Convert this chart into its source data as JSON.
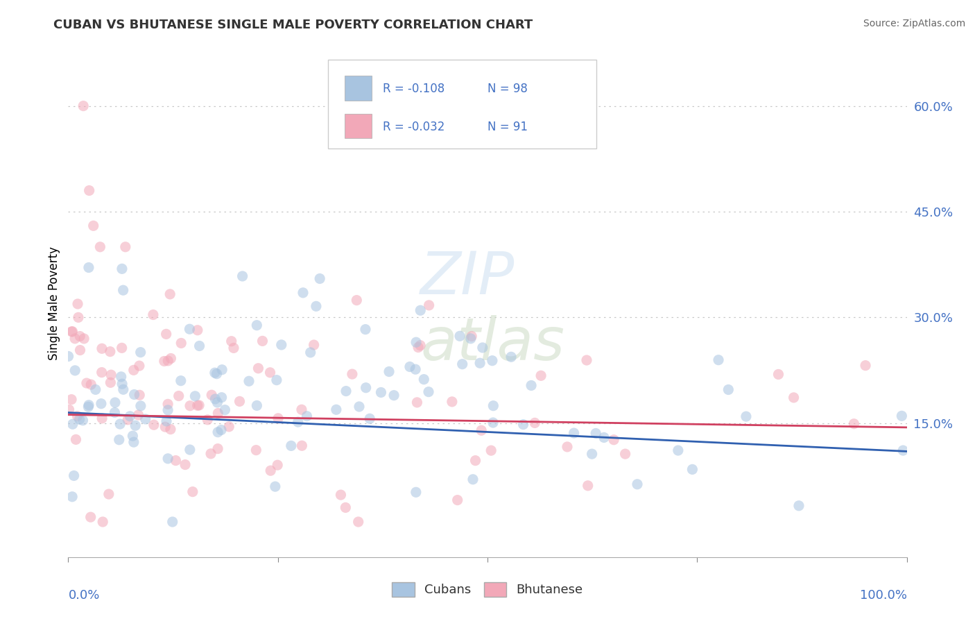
{
  "title": "CUBAN VS BHUTANESE SINGLE MALE POVERTY CORRELATION CHART",
  "source": "Source: ZipAtlas.com",
  "ylabel": "Single Male Poverty",
  "right_yticks": [
    "60.0%",
    "45.0%",
    "30.0%",
    "15.0%"
  ],
  "right_ytick_vals": [
    0.6,
    0.45,
    0.3,
    0.15
  ],
  "ymin": -0.04,
  "ymax": 0.68,
  "xmin": 0.0,
  "xmax": 1.0,
  "cubans_R": "-0.108",
  "cubans_N": "98",
  "bhutanese_R": "-0.032",
  "bhutanese_N": "91",
  "cubans_color": "#a8c4e0",
  "bhutanese_color": "#f2a8b8",
  "cubans_line_color": "#3060b0",
  "bhutanese_line_color": "#d04060",
  "bhutanese_line_style": "solid",
  "legend_label_cubans": "Cubans",
  "legend_label_bhutanese": "Bhutanese",
  "watermark_line1": "ZIP",
  "watermark_line2": "atlas",
  "grid_color": "#c8c8c8",
  "grid_linestyle": "dotted",
  "title_color": "#333333",
  "source_color": "#666666",
  "axis_label_color": "#4472c4",
  "scatter_size": 120,
  "scatter_alpha": 0.55,
  "cubans_intercept": 0.165,
  "cubans_slope": -0.055,
  "bhutanese_intercept": 0.162,
  "bhutanese_slope": -0.018
}
